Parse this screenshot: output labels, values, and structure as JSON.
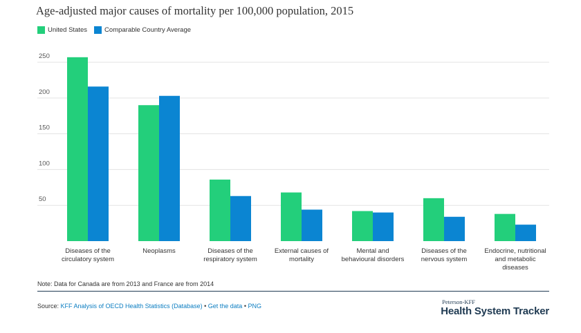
{
  "title": "Age-adjusted major causes of mortality per 100,000 population, 2015",
  "legend": {
    "us_label": "United States",
    "avg_label": "Comparable Country Average"
  },
  "colors": {
    "us": "#23cf7b",
    "avg": "#0b85d2",
    "gridline": "#e3e3e3",
    "divider": "#1f3a52",
    "link": "#0b7dc1"
  },
  "chart_data": {
    "type": "bar",
    "title": "Age-adjusted major causes of mortality per 100,000 population, 2015",
    "xlabel": "",
    "ylabel": "",
    "ylim": [
      0,
      260
    ],
    "yticks": [
      50,
      100,
      150,
      200,
      250
    ],
    "grid": true,
    "legend_position": "top-left",
    "categories": [
      [
        "Diseases of the",
        "circulatory system"
      ],
      [
        "Neoplasms"
      ],
      [
        "Diseases of the",
        "respiratory system"
      ],
      [
        "External causes of",
        "mortality"
      ],
      [
        "Mental and",
        "behavioural disorders"
      ],
      [
        "Diseases of the",
        "nervous system"
      ],
      [
        "Endocrine, nutritional",
        "and metabolic",
        "diseases"
      ]
    ],
    "series": [
      {
        "name": "United States",
        "values": [
          257,
          190,
          86,
          68,
          42,
          60,
          38
        ]
      },
      {
        "name": "Comparable Country Average",
        "values": [
          216,
          203,
          63,
          44,
          40,
          34,
          23
        ]
      }
    ]
  },
  "note": "Note: Data for Canada are from 2013 and France are from 2014",
  "source": {
    "prefix": "Source: ",
    "analysis_link": "KFF Analysis of OECD Health Statistics (Database)",
    "sep1": " • ",
    "data_link": "Get the data",
    "sep2": " • ",
    "png_link": "PNG"
  },
  "brand": {
    "small": "Peterson-KFF",
    "big": "Health System Tracker"
  }
}
